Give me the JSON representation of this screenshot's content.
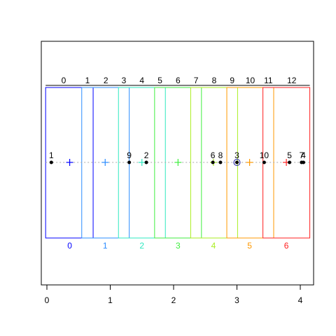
{
  "chart_data": {
    "type": "scatter",
    "title": "",
    "xlabel": "",
    "ylabel": "",
    "xlim": [
      -0.1,
      4.2
    ],
    "x_ticks": [
      0,
      1,
      2,
      3,
      4
    ],
    "grid": false,
    "points": [
      {
        "label": "1",
        "x": 0.07
      },
      {
        "label": "9",
        "x": 1.3
      },
      {
        "label": "2",
        "x": 1.57
      },
      {
        "label": "6",
        "x": 2.62
      },
      {
        "label": "8",
        "x": 2.74
      },
      {
        "label": "3",
        "x": 3.0
      },
      {
        "label": "10",
        "x": 3.43
      },
      {
        "label": "5",
        "x": 3.83
      },
      {
        "label": "7",
        "x": 4.02
      },
      {
        "label": "4",
        "x": 4.05
      }
    ],
    "highlighted_point": "3",
    "top_segments": [
      {
        "label": "0",
        "from": -0.02,
        "to": 0.55
      },
      {
        "label": "1",
        "from": 0.55,
        "to": 0.73
      },
      {
        "label": "2",
        "from": 0.73,
        "to": 1.13
      },
      {
        "label": "3",
        "from": 1.13,
        "to": 1.3
      },
      {
        "label": "4",
        "from": 1.3,
        "to": 1.7
      },
      {
        "label": "5",
        "from": 1.7,
        "to": 1.87
      },
      {
        "label": "6",
        "from": 1.87,
        "to": 2.27
      },
      {
        "label": "7",
        "from": 2.27,
        "to": 2.44
      },
      {
        "label": "8",
        "from": 2.44,
        "to": 2.84
      },
      {
        "label": "9",
        "from": 2.84,
        "to": 3.01
      },
      {
        "label": "10",
        "from": 3.01,
        "to": 3.41
      },
      {
        "label": "11",
        "from": 3.41,
        "to": 3.58
      },
      {
        "label": "12",
        "from": 3.58,
        "to": 4.15
      }
    ],
    "groups": [
      {
        "label": "0",
        "from": -0.02,
        "to": 0.73,
        "center": 0.36,
        "color": "#0000ff"
      },
      {
        "label": "1",
        "from": 0.55,
        "to": 1.3,
        "center": 0.92,
        "color": "#2b8cff"
      },
      {
        "label": "2",
        "from": 1.13,
        "to": 1.87,
        "center": 1.5,
        "color": "#2ee8c0"
      },
      {
        "label": "3",
        "from": 1.7,
        "to": 2.44,
        "center": 2.07,
        "color": "#40ee40"
      },
      {
        "label": "4",
        "from": 2.27,
        "to": 3.01,
        "center": 2.63,
        "color": "#aaee22"
      },
      {
        "label": "5",
        "from": 2.84,
        "to": 3.58,
        "center": 3.2,
        "color": "#ff9900"
      },
      {
        "label": "6",
        "from": 3.41,
        "to": 4.15,
        "center": 3.78,
        "color": "#ff2020"
      }
    ]
  }
}
